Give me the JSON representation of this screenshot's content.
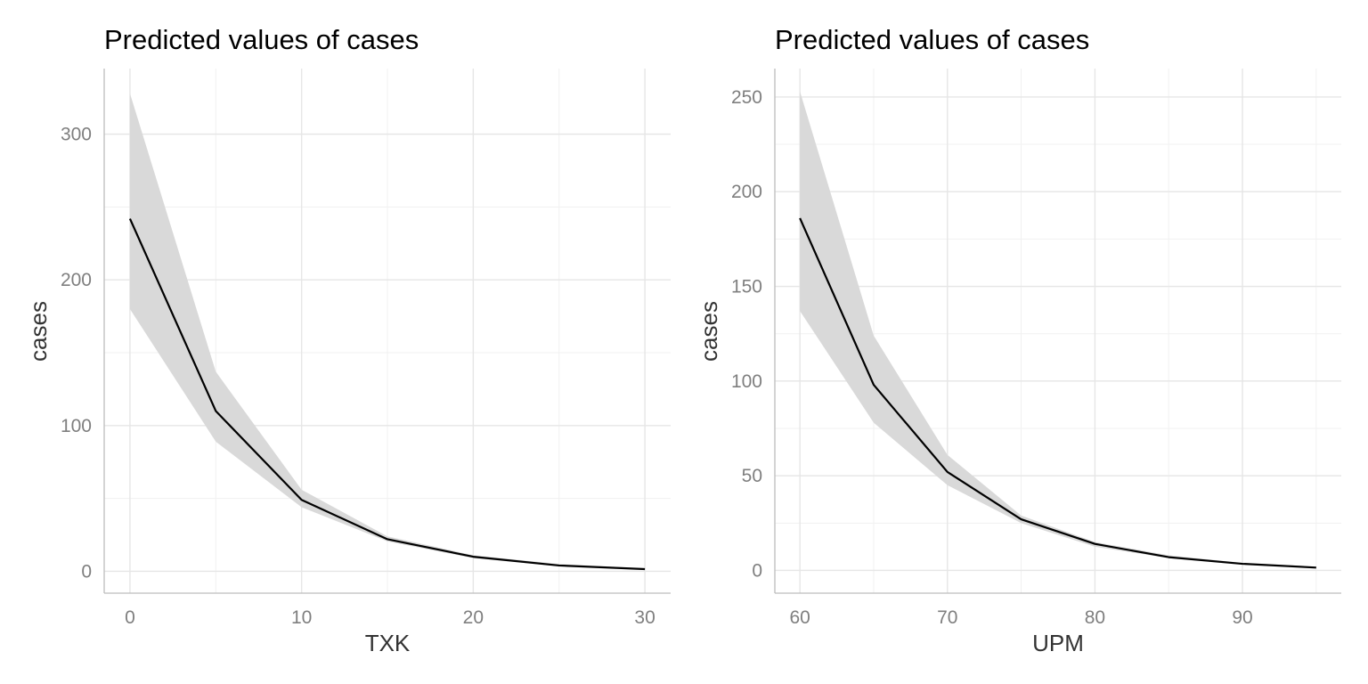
{
  "chart_data": [
    {
      "type": "line",
      "title": "Predicted values of cases",
      "xlabel": "TXK",
      "ylabel": "cases",
      "x": [
        0,
        5,
        10,
        15,
        20,
        25,
        30
      ],
      "series": [
        {
          "values": [
            242,
            110,
            49,
            22,
            10,
            4,
            1.5
          ],
          "ci_low": [
            180,
            89,
            44,
            20.5,
            9,
            3.5,
            1.2
          ],
          "ci_high": [
            328,
            137,
            56,
            24,
            11,
            5,
            2
          ]
        }
      ],
      "xlim": [
        -1.5,
        31.5
      ],
      "ylim": [
        -15,
        345
      ],
      "xticks": [
        0,
        10,
        20,
        30
      ],
      "xtick_labels": [
        "0",
        "10",
        "20",
        "30"
      ],
      "xminor": [
        5,
        15,
        25
      ],
      "yticks": [
        0,
        100,
        200,
        300
      ],
      "ytick_labels": [
        "0",
        "100",
        "200",
        "300"
      ],
      "yminor": [
        50,
        150,
        250
      ],
      "grid": true,
      "legend": false,
      "colors": {
        "line": "#000000",
        "band": "#d9d9d9"
      }
    },
    {
      "type": "line",
      "title": "Predicted values of cases",
      "xlabel": "UPM",
      "ylabel": "cases",
      "x": [
        60,
        65,
        70,
        75,
        80,
        85,
        90,
        95
      ],
      "series": [
        {
          "values": [
            186,
            98,
            52,
            27,
            14,
            7,
            3.5,
            1.5
          ],
          "ci_low": [
            137,
            78,
            45,
            25,
            12.5,
            6.5,
            3.2,
            1.2
          ],
          "ci_high": [
            253,
            124,
            61,
            29,
            15,
            8,
            4,
            2
          ]
        }
      ],
      "xlim": [
        58.3,
        96.7
      ],
      "ylim": [
        -12,
        265
      ],
      "xticks": [
        60,
        70,
        80,
        90
      ],
      "xtick_labels": [
        "60",
        "70",
        "80",
        "90"
      ],
      "xminor": [
        65,
        75,
        85,
        95
      ],
      "yticks": [
        0,
        50,
        100,
        150,
        200,
        250
      ],
      "ytick_labels": [
        "0",
        "50",
        "100",
        "150",
        "200",
        "250"
      ],
      "yminor": [
        25,
        75,
        125,
        175,
        225
      ],
      "grid": true,
      "legend": false,
      "colors": {
        "line": "#000000",
        "band": "#d9d9d9"
      }
    }
  ]
}
